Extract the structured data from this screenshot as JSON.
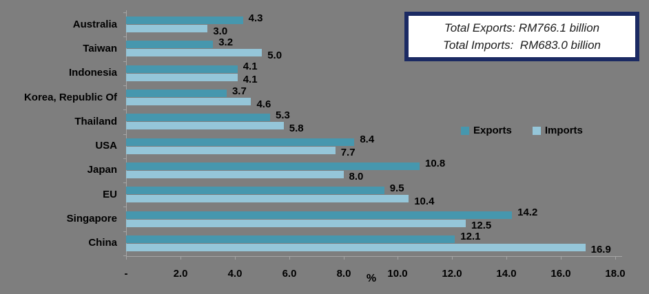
{
  "chart_data": {
    "type": "bar",
    "orientation": "horizontal",
    "title": "",
    "categories": [
      "Australia",
      "Taiwan",
      "Indonesia",
      "Korea, Republic Of",
      "Thailand",
      "USA",
      "Japan",
      "EU",
      "Singapore",
      "China"
    ],
    "series": [
      {
        "name": "Exports",
        "color": "#4697AE",
        "values": [
          4.3,
          3.2,
          4.1,
          3.7,
          5.3,
          8.4,
          10.8,
          9.5,
          14.2,
          12.1
        ]
      },
      {
        "name": "Imports",
        "color": "#95C6D9",
        "values": [
          3.0,
          5.0,
          4.1,
          4.6,
          5.8,
          7.7,
          8.0,
          10.4,
          12.5,
          16.9
        ]
      }
    ],
    "xlabel": "%",
    "xlim": [
      0,
      18
    ],
    "x_ticks": [
      "-",
      "2.0",
      "4.0",
      "6.0",
      "8.0",
      "10.0",
      "12.0",
      "14.0",
      "16.0",
      "18.0"
    ],
    "grid": false,
    "value_labels": true,
    "legend_position": "middle-right"
  },
  "legend": {
    "items": [
      {
        "label": "Exports",
        "color": "#4697AE"
      },
      {
        "label": "Imports",
        "color": "#95C6D9"
      }
    ]
  },
  "annotation_box": {
    "line1": "Total Exports: RM766.1 billion",
    "line2": "Total Imports:  RM683.0 billion",
    "border_color": "#1B2A63",
    "background": "#FFFFFF"
  },
  "colors": {
    "background": "#7E7E7E",
    "axis_line": "#A6A6A6",
    "label_text": "#000000"
  }
}
